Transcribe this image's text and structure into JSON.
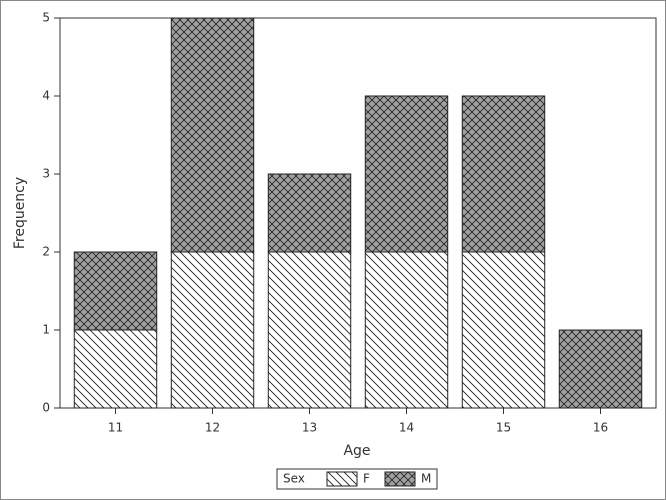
{
  "chart_data": {
    "type": "stacked_bar",
    "x_label": "Age",
    "y_label": "Frequency",
    "categories": [
      "11",
      "12",
      "13",
      "14",
      "15",
      "16"
    ],
    "series": [
      {
        "name": "F",
        "color": "#ffffff",
        "values": [
          1,
          2,
          2,
          2,
          2,
          0
        ]
      },
      {
        "name": "M",
        "color": "#a0a0a0",
        "values": [
          1,
          3,
          1,
          2,
          2,
          1
        ]
      }
    ],
    "legend_title": "Sex",
    "legend": "bottom",
    "ylim": [
      0,
      5
    ],
    "yticks": [
      0,
      1,
      2,
      3,
      4,
      5
    ]
  }
}
